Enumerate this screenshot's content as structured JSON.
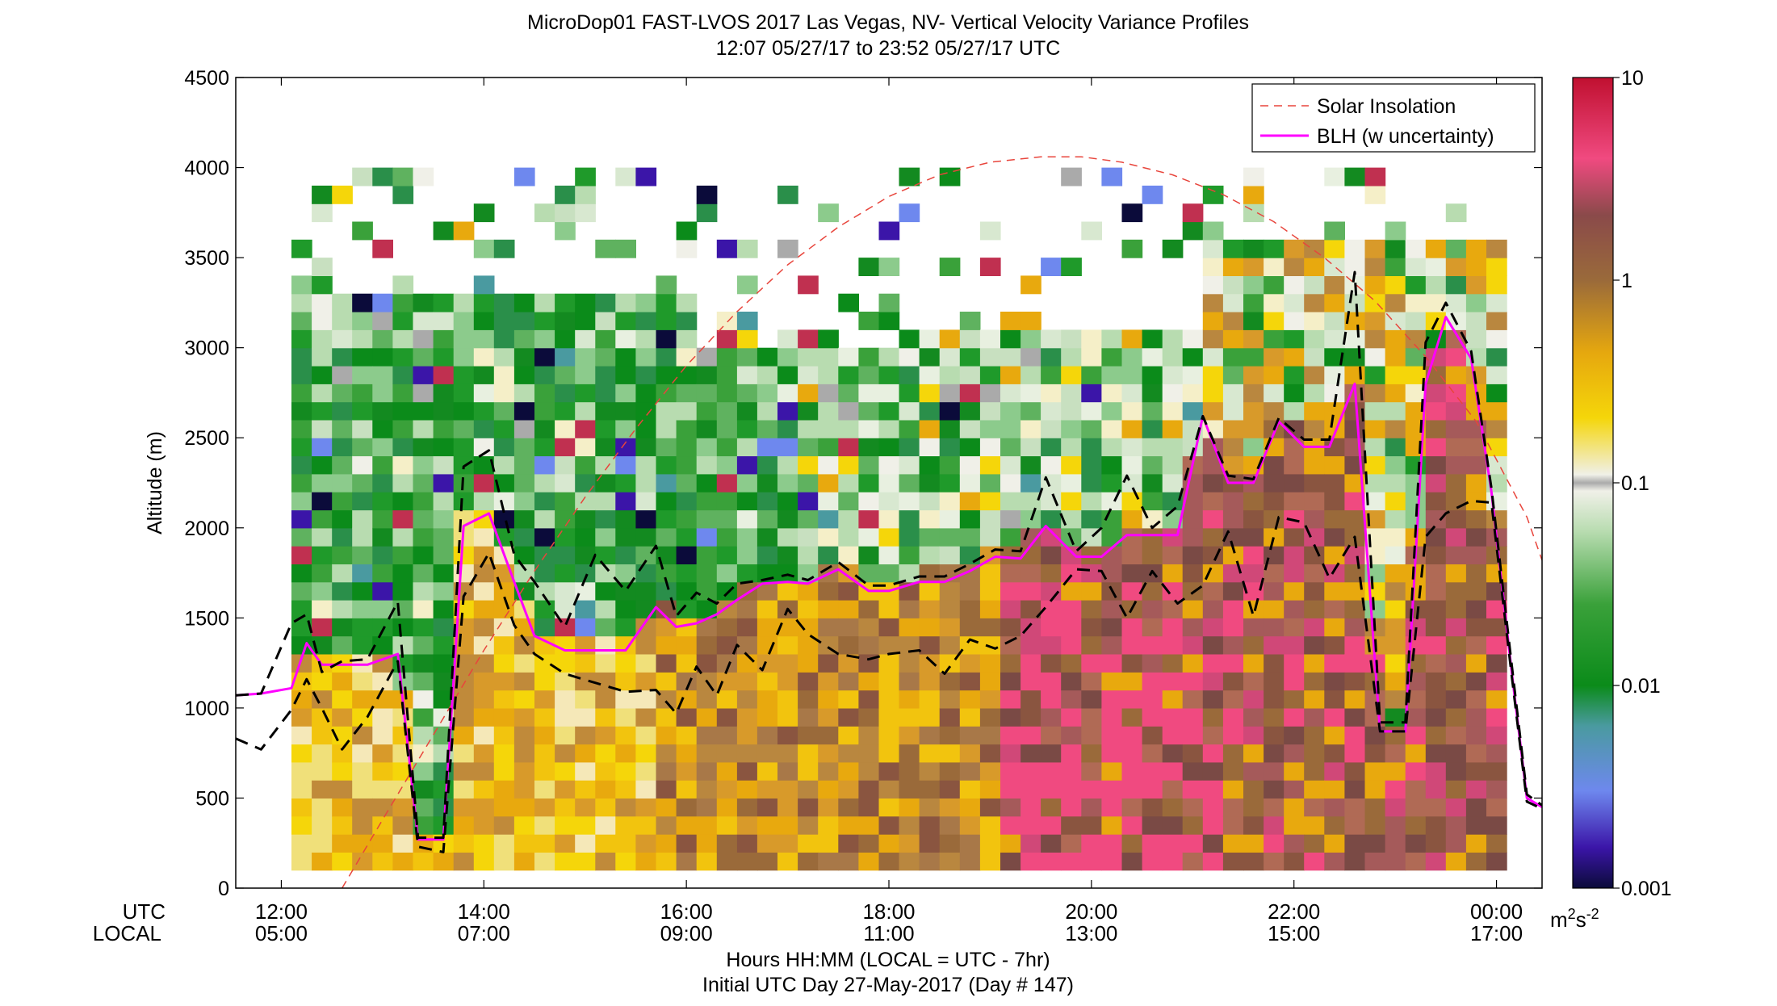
{
  "chart_data": {
    "type": "heatmap",
    "title_line1": "MicroDop01 FAST-LVOS 2017 Las Vegas, NV- Vertical Velocity Variance Profiles",
    "title_line2": "12:07 05/27/17 to 23:52 05/27/17  UTC",
    "ylabel": "Altitude (m)",
    "xlabel": "Hours HH:MM  (LOCAL = UTC - 7hr)",
    "xlabel2": "Initial UTC Day 27-May-2017 (Day # 147)",
    "row_labels": [
      "UTC",
      "LOCAL"
    ],
    "x_range_hours": [
      11.55,
      24.45
    ],
    "ylim": [
      0,
      4500
    ],
    "yticks": [
      "0",
      "500",
      "1000",
      "1500",
      "2000",
      "2500",
      "3000",
      "3500",
      "4000",
      "4500"
    ],
    "xticks_utc": [
      "12:00",
      "14:00",
      "16:00",
      "18:00",
      "20:00",
      "22:00",
      "00:00"
    ],
    "xticks_local": [
      "05:00",
      "07:00",
      "09:00",
      "11:00",
      "13:00",
      "15:00",
      "17:00"
    ],
    "colorbar": {
      "scale": "log",
      "range": [
        0.001,
        10
      ],
      "tick_labels": [
        "0.001",
        "0.01",
        "0.1",
        "1",
        "10"
      ],
      "units_base": "m",
      "units_sup1": "2",
      "units_mid": "s",
      "units_sup2": "-2"
    },
    "legend": {
      "placement": "top-right",
      "entries": [
        "Solar Insolation",
        "BLH (w uncertainty)"
      ]
    },
    "series": [
      {
        "name": "BLH (w uncertainty)",
        "color": "#ff00ff",
        "x": [
          11.55,
          11.8,
          12.1,
          12.25,
          12.4,
          12.6,
          12.85,
          13.15,
          13.35,
          13.6,
          13.8,
          14.05,
          14.3,
          14.5,
          14.8,
          15.1,
          15.4,
          15.7,
          15.9,
          16.1,
          16.3,
          16.5,
          16.75,
          17.0,
          17.2,
          17.5,
          17.8,
          18.0,
          18.3,
          18.55,
          18.8,
          19.05,
          19.3,
          19.55,
          19.85,
          20.1,
          20.35,
          20.6,
          20.85,
          21.1,
          21.35,
          21.6,
          21.85,
          22.1,
          22.35,
          22.6,
          22.85,
          23.1,
          23.3,
          23.5,
          23.75,
          23.95,
          24.15,
          24.3,
          24.45
        ],
        "y": [
          1070,
          1080,
          1110,
          1360,
          1240,
          1240,
          1240,
          1300,
          270,
          270,
          2010,
          2080,
          1700,
          1400,
          1320,
          1320,
          1320,
          1560,
          1450,
          1470,
          1520,
          1600,
          1690,
          1700,
          1690,
          1770,
          1650,
          1650,
          1700,
          1700,
          1760,
          1840,
          1830,
          2010,
          1840,
          1840,
          1960,
          1960,
          1960,
          2620,
          2250,
          2250,
          2590,
          2450,
          2450,
          2800,
          870,
          870,
          2800,
          3170,
          2940,
          2200,
          1200,
          500,
          450
        ]
      },
      {
        "name": "BLH upper",
        "color": "#000000",
        "x": [
          11.55,
          11.8,
          12.1,
          12.25,
          12.4,
          12.6,
          12.85,
          13.15,
          13.35,
          13.6,
          13.8,
          14.05,
          14.3,
          14.5,
          14.8,
          15.1,
          15.4,
          15.7,
          15.9,
          16.1,
          16.3,
          16.5,
          16.75,
          17.0,
          17.2,
          17.5,
          17.8,
          18.0,
          18.3,
          18.55,
          18.8,
          19.05,
          19.3,
          19.55,
          19.85,
          20.1,
          20.35,
          20.6,
          20.85,
          21.1,
          21.35,
          21.6,
          21.85,
          22.1,
          22.35,
          22.6,
          22.85,
          23.1,
          23.3,
          23.5,
          23.75,
          23.95,
          24.15,
          24.3,
          24.45
        ],
        "y": [
          1070,
          1080,
          1470,
          1520,
          1200,
          1260,
          1270,
          1590,
          280,
          280,
          2340,
          2430,
          1850,
          1700,
          1450,
          1850,
          1650,
          1900,
          1510,
          1640,
          1580,
          1690,
          1710,
          1740,
          1710,
          1810,
          1680,
          1680,
          1730,
          1730,
          1800,
          1880,
          1870,
          2280,
          1870,
          2000,
          2290,
          2000,
          2120,
          2620,
          2290,
          2270,
          2610,
          2490,
          2490,
          3420,
          920,
          920,
          3030,
          3250,
          2980,
          2220,
          1240,
          520,
          460
        ]
      },
      {
        "name": "BLH lower",
        "color": "#000000",
        "x": [
          11.55,
          11.8,
          12.1,
          12.25,
          12.4,
          12.6,
          12.85,
          13.15,
          13.35,
          13.6,
          13.8,
          14.05,
          14.3,
          14.5,
          14.8,
          15.1,
          15.4,
          15.7,
          15.9,
          16.1,
          16.3,
          16.5,
          16.75,
          17.0,
          17.2,
          17.5,
          17.8,
          18.0,
          18.3,
          18.55,
          18.8,
          19.05,
          19.3,
          19.55,
          19.85,
          20.1,
          20.35,
          20.6,
          20.85,
          21.1,
          21.35,
          21.6,
          21.85,
          22.1,
          22.35,
          22.6,
          22.85,
          23.1,
          23.3,
          23.5,
          23.75,
          23.95,
          24.15,
          24.3,
          24.45
        ],
        "y": [
          830,
          770,
          990,
          1160,
          1000,
          770,
          950,
          1260,
          230,
          200,
          1620,
          1860,
          1460,
          1300,
          1190,
          1140,
          1090,
          1100,
          970,
          1230,
          1070,
          1350,
          1210,
          1550,
          1410,
          1300,
          1270,
          1300,
          1320,
          1190,
          1380,
          1330,
          1400,
          1560,
          1770,
          1760,
          1500,
          1760,
          1580,
          1680,
          1980,
          1510,
          2060,
          2030,
          1720,
          1950,
          870,
          870,
          1950,
          2080,
          2150,
          2140,
          1180,
          480,
          440
        ]
      },
      {
        "name": "Solar Insolation",
        "color": "#e8453c",
        "x": [
          12.6,
          13.0,
          13.5,
          14.0,
          14.5,
          15.0,
          15.5,
          16.0,
          16.5,
          17.0,
          17.5,
          18.0,
          18.5,
          19.0,
          19.5,
          19.9,
          20.3,
          20.8,
          21.3,
          21.8,
          22.3,
          22.8,
          23.3,
          23.8,
          24.3,
          24.45
        ],
        "y": [
          0,
          380,
          850,
          1320,
          1760,
          2170,
          2550,
          2900,
          3200,
          3460,
          3670,
          3840,
          3960,
          4030,
          4060,
          4060,
          4030,
          3960,
          3850,
          3700,
          3500,
          3260,
          2950,
          2590,
          2060,
          1820
        ]
      }
    ]
  }
}
